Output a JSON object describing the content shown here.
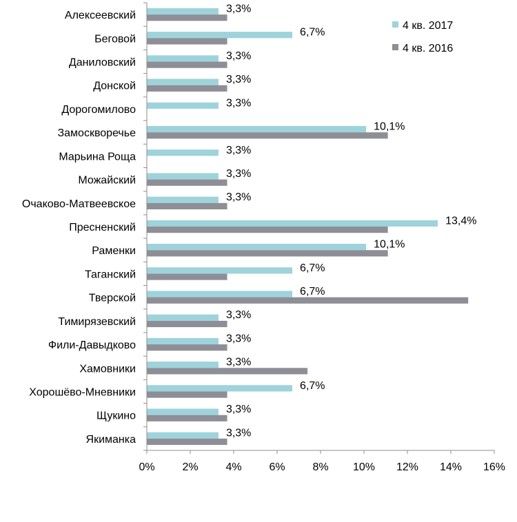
{
  "chart_data": {
    "type": "bar",
    "orientation": "horizontal",
    "categories": [
      "Алексеевский",
      "Беговой",
      "Даниловский",
      "Донской",
      "Дорогомилово",
      "Замоскворечье",
      "Марьина Роща",
      "Можайский",
      "Очаково-Матвеевское",
      "Пресненский",
      "Раменки",
      "Таганский",
      "Тверской",
      "Тимирязевский",
      "Фили-Давыдково",
      "Хамовники",
      "Хорошёво-Мневники",
      "Щукино",
      "Якиманка"
    ],
    "series": [
      {
        "name": "4 кв. 2017",
        "color": "#9ED3DB",
        "values": [
          3.3,
          6.7,
          3.3,
          3.3,
          3.3,
          10.1,
          3.3,
          3.3,
          3.3,
          13.4,
          10.1,
          6.7,
          6.7,
          3.3,
          3.3,
          3.3,
          6.7,
          3.3,
          3.3
        ],
        "data_labels": [
          "3,3%",
          "6,7%",
          "3,3%",
          "3,3%",
          "3,3%",
          "10,1%",
          "3,3%",
          "3,3%",
          "3,3%",
          "13,4%",
          "10,1%",
          "6,7%",
          "6,7%",
          "3,3%",
          "3,3%",
          "3,3%",
          "6,7%",
          "3,3%",
          "3,3%"
        ]
      },
      {
        "name": "4 кв. 2016",
        "color": "#8E8E96",
        "values": [
          3.7,
          3.7,
          3.7,
          3.7,
          0,
          11.1,
          0,
          3.7,
          3.7,
          11.1,
          11.1,
          3.7,
          14.8,
          3.7,
          3.7,
          7.4,
          3.7,
          3.7,
          3.7
        ]
      }
    ],
    "xlim": [
      0,
      16
    ],
    "xticks": [
      0,
      2,
      4,
      6,
      8,
      10,
      12,
      14,
      16
    ],
    "xtick_labels": [
      "0%",
      "2%",
      "4%",
      "6%",
      "8%",
      "10%",
      "12%",
      "14%",
      "16%"
    ],
    "grid": false,
    "legend_position": "top-right",
    "axis_color": "#8C8C8C"
  }
}
